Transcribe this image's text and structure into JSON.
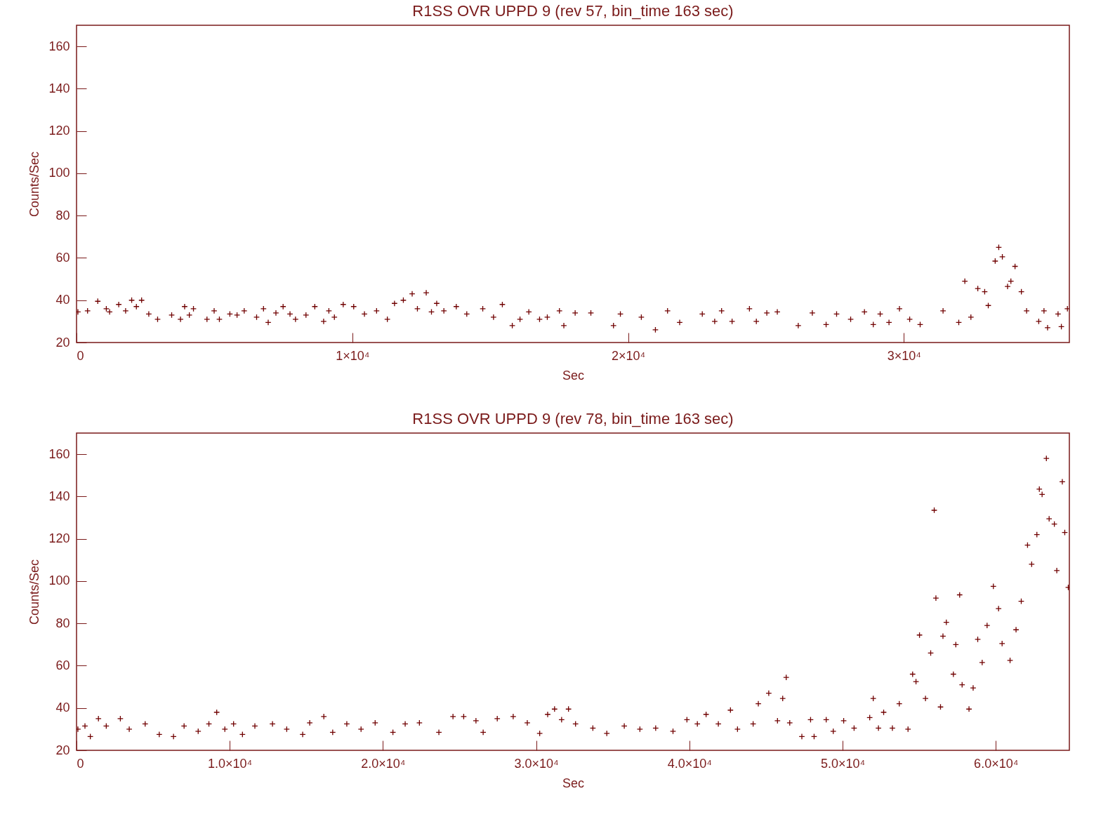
{
  "chart_data": [
    {
      "type": "scatter",
      "title": "R1SS OVR UPPD 9 (rev 57, bin_time 163 sec)",
      "xlabel": "Sec",
      "ylabel": "Counts/Sec",
      "marker": "cross",
      "grid": false,
      "xlim": [
        0,
        36000
      ],
      "ylim": [
        20,
        170
      ],
      "xticks": [
        0,
        {
          "value": 10000,
          "label": "1×10⁴"
        },
        {
          "value": 20000,
          "label": "2×10⁴"
        },
        {
          "value": 30000,
          "label": "3×10⁴"
        }
      ],
      "yticks": [
        20,
        40,
        60,
        80,
        100,
        120,
        140,
        160
      ],
      "series": [
        {
          "color": "#700000",
          "x": [
            50,
            400,
            770,
            1080,
            1200,
            1530,
            1780,
            2000,
            2170,
            2360,
            2620,
            2940,
            3450,
            3770,
            3920,
            4090,
            4240,
            4730,
            4990,
            5180,
            5560,
            5820,
            6080,
            6530,
            6780,
            6950,
            7230,
            7490,
            7740,
            7940,
            8320,
            8640,
            8960,
            9150,
            9350,
            9670,
            10050,
            10440,
            10880,
            11270,
            11530,
            11850,
            12170,
            12360,
            12680,
            12870,
            13060,
            13320,
            13770,
            14150,
            14730,
            15120,
            15440,
            15800,
            16080,
            16400,
            16790,
            17070,
            17510,
            17670,
            18080,
            18650,
            19470,
            19720,
            20480,
            20990,
            21430,
            21870,
            22690,
            23140,
            23390,
            23770,
            24400,
            24650,
            25030,
            25410,
            26170,
            26680,
            27180,
            27560,
            28070,
            28570,
            28890,
            29140,
            29460,
            29840,
            30210,
            30590,
            31420,
            31990,
            32210,
            32430,
            32680,
            32930,
            33060,
            33310,
            33440,
            33570,
            33760,
            33880,
            34030,
            34260,
            34450,
            34890,
            35080,
            35210,
            35590,
            35710,
            35930
          ],
          "values": [
            34.5,
            35,
            39.5,
            36,
            34.5,
            38,
            35,
            40,
            37,
            40,
            33.5,
            31,
            33,
            31,
            37,
            33,
            36,
            31,
            35,
            31,
            33.5,
            33,
            35,
            32,
            36,
            29.5,
            34,
            37,
            33.5,
            31,
            33,
            37,
            30,
            35,
            32,
            38,
            37,
            33.5,
            35,
            31,
            38.5,
            40,
            43,
            36,
            43.5,
            34.5,
            38.5,
            35,
            37,
            33.5,
            36,
            32,
            38,
            28,
            31,
            34.5,
            31,
            32,
            35,
            28,
            34,
            34,
            28,
            33.5,
            32,
            26,
            35,
            29.5,
            33.5,
            30,
            35,
            30,
            36,
            30,
            34,
            34.5,
            28,
            34,
            28.5,
            33.5,
            31,
            34.5,
            28.5,
            33.5,
            29.5,
            36,
            31,
            28.5,
            35,
            29.5,
            49,
            32,
            45.5,
            44,
            37.5,
            58.5,
            65,
            60.5,
            46.5,
            49,
            56,
            44,
            35,
            30,
            35,
            27,
            33.5,
            27.5,
            36
          ]
        }
      ]
    },
    {
      "type": "scatter",
      "title": "R1SS OVR UPPD 9 (rev 78, bin_time 163 sec)",
      "xlabel": "Sec",
      "ylabel": "Counts/Sec",
      "marker": "cross",
      "grid": false,
      "xlim": [
        0,
        64800
      ],
      "ylim": [
        20,
        170
      ],
      "xticks": [
        0,
        {
          "value": 10000,
          "label": "1.0×10⁴"
        },
        {
          "value": 20000,
          "label": "2.0×10⁴"
        },
        {
          "value": 30000,
          "label": "3.0×10⁴"
        },
        {
          "value": 40000,
          "label": "4.0×10⁴"
        },
        {
          "value": 50000,
          "label": "5.0×10⁴"
        },
        {
          "value": 60000,
          "label": "6.0×10⁴"
        }
      ],
      "yticks": [
        20,
        40,
        60,
        80,
        100,
        120,
        140,
        160
      ],
      "series": [
        {
          "color": "#700000",
          "x": [
            90,
            550,
            900,
            1430,
            1940,
            2860,
            3440,
            4480,
            5400,
            6330,
            7020,
            7940,
            8640,
            9150,
            9680,
            10250,
            10830,
            11640,
            12790,
            13720,
            14760,
            15220,
            16140,
            16720,
            17640,
            18570,
            19490,
            20650,
            21450,
            22380,
            23650,
            24570,
            25270,
            26070,
            26540,
            27460,
            28500,
            29420,
            30230,
            30750,
            31200,
            31660,
            32110,
            32570,
            33700,
            34610,
            35750,
            36770,
            37800,
            38930,
            39840,
            40520,
            41090,
            41890,
            42680,
            43140,
            44160,
            44500,
            45180,
            45750,
            46090,
            46320,
            46550,
            47340,
            47910,
            48140,
            48930,
            49390,
            50070,
            50750,
            51770,
            52000,
            52340,
            52680,
            53250,
            53700,
            54270,
            54570,
            54790,
            55020,
            55410,
            55750,
            55980,
            56090,
            56390,
            56550,
            56770,
            57230,
            57390,
            57640,
            57800,
            58250,
            58520,
            58820,
            59110,
            59430,
            59840,
            60180,
            60410,
            60930,
            61320,
            61660,
            62070,
            62340,
            62680,
            62840,
            63020,
            63300,
            63480,
            63820,
            63980,
            64340,
            64500,
            64730
          ],
          "values": [
            30,
            31.5,
            26.5,
            35,
            31.5,
            35,
            30,
            32.5,
            27.5,
            26.5,
            31.5,
            29,
            32.5,
            38,
            30,
            32.5,
            27.5,
            31.5,
            32.5,
            30,
            27.5,
            33,
            36,
            28.5,
            32.5,
            30,
            33,
            28.5,
            32.5,
            33,
            28.5,
            36,
            36,
            34,
            28.5,
            35,
            36,
            33,
            28,
            37,
            39.5,
            34.5,
            39.5,
            32.5,
            30.5,
            28,
            31.5,
            30,
            30.5,
            29,
            34.5,
            32.5,
            37,
            32.5,
            39,
            30,
            32.5,
            42,
            47,
            34,
            44.5,
            54.5,
            33,
            26.5,
            34.5,
            26.5,
            34.5,
            29,
            34,
            30.5,
            35.5,
            44.5,
            30.5,
            38,
            30.5,
            42,
            30,
            56,
            52.5,
            74.5,
            44.5,
            66,
            133.5,
            92,
            40.5,
            74,
            80.5,
            56,
            70,
            93.5,
            51,
            39.5,
            49.5,
            72.5,
            61.5,
            79,
            97.5,
            87,
            70.5,
            62.5,
            77,
            90.5,
            117,
            108,
            122,
            143.5,
            141,
            158,
            129.5,
            127,
            105,
            147,
            123,
            97
          ]
        }
      ]
    }
  ]
}
